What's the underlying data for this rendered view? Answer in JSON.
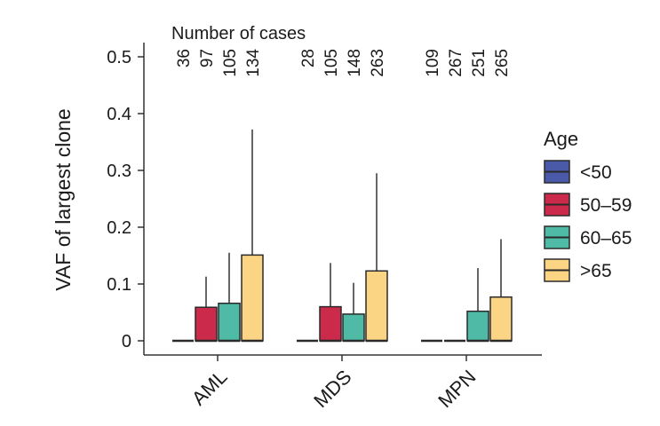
{
  "chart_data": {
    "type": "bar",
    "subtype": "box-like bars with upper whiskers",
    "title": "",
    "annotation_title": "Number of cases",
    "xlabel": "",
    "ylabel": "VAF of largest clone",
    "ylim": [
      0,
      0.5
    ],
    "yticks": [
      0,
      0.1,
      0.2,
      0.3,
      0.4,
      0.5
    ],
    "ytick_labels": [
      "0",
      "0.1",
      "0.2",
      "0.3",
      "0.4",
      "0.5"
    ],
    "categories": [
      "AML",
      "MDS",
      "MPN"
    ],
    "legend": {
      "title": "Age",
      "position": "right"
    },
    "series": [
      {
        "name": "<50",
        "color": "#4a5aa8",
        "values": [
          0.0,
          0.0,
          0.0
        ],
        "whisker": [
          0.0,
          0.0,
          0.0
        ],
        "cases": [
          "36",
          "28",
          "109"
        ]
      },
      {
        "name": "50–59",
        "color": "#cc2a4a",
        "values": [
          0.059,
          0.06,
          0.0
        ],
        "whisker": [
          0.113,
          0.137,
          0.0
        ],
        "cases": [
          "97",
          "105",
          "267"
        ]
      },
      {
        "name": "60–65",
        "color": "#4fbba6",
        "values": [
          0.066,
          0.047,
          0.052
        ],
        "whisker": [
          0.155,
          0.102,
          0.128
        ],
        "cases": [
          "105",
          "148",
          "251"
        ]
      },
      {
        "name": ">65",
        "color": "#fcd584",
        "values": [
          0.151,
          0.123,
          0.077
        ],
        "whisker": [
          0.372,
          0.295,
          0.179
        ],
        "cases": [
          "134",
          "263",
          "265"
        ]
      }
    ]
  }
}
